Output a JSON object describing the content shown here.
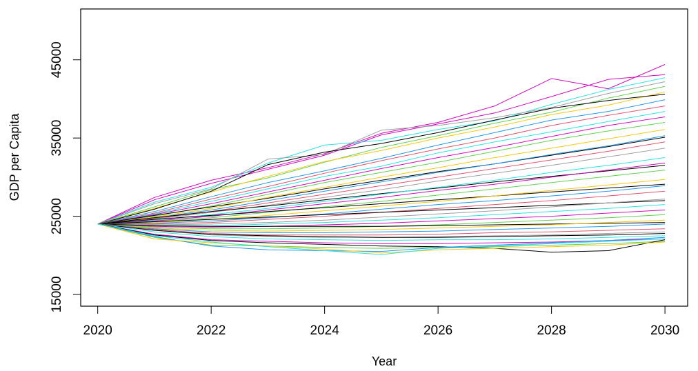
{
  "chart_data": {
    "type": "line",
    "title": "",
    "xlabel": "Year",
    "ylabel": "GDP per Capita",
    "xlim": [
      2019.7,
      2030.4
    ],
    "ylim": [
      13500,
      51500
    ],
    "x_ticks": [
      2020,
      2022,
      2024,
      2026,
      2028,
      2030
    ],
    "x_tick_labels": [
      "2020",
      "2022",
      "2024",
      "2026",
      "2028",
      "2030"
    ],
    "y_ticks": [
      15000,
      25000,
      35000,
      45000
    ],
    "y_tick_labels": [
      "15000",
      "25000",
      "35000",
      "45000"
    ],
    "grid": false,
    "legend": "none",
    "x": [
      2020,
      2021,
      2022,
      2023,
      2024,
      2025,
      2026,
      2027,
      2028,
      2029,
      2030
    ],
    "series": [
      {
        "color": "#cd0bbc",
        "values": [
          24000,
          27400,
          29600,
          31200,
          33000,
          35600,
          37000,
          39100,
          42600,
          41300,
          44400
        ]
      },
      {
        "color": "#cd0bbc",
        "values": [
          24000,
          27100,
          29200,
          31000,
          32800,
          35400,
          36800,
          38200,
          40300,
          42500,
          43100
        ]
      },
      {
        "color": "#28e2e5",
        "values": [
          24000,
          26800,
          28700,
          31800,
          34100,
          34700,
          36100,
          37200,
          39300,
          41200,
          42700
        ]
      },
      {
        "color": "#9e9e9e",
        "values": [
          24000,
          26600,
          28500,
          32300,
          32900,
          36000,
          36600,
          37600,
          38900,
          40700,
          42200
        ]
      },
      {
        "color": "#61d04f",
        "values": [
          24000,
          26200,
          28400,
          29900,
          31900,
          33800,
          35300,
          36900,
          38300,
          40100,
          41600
        ]
      },
      {
        "color": "#f5c710",
        "values": [
          24000,
          26000,
          28100,
          30100,
          32000,
          33400,
          35000,
          36400,
          38000,
          39200,
          40900
        ]
      },
      {
        "color": "#000000",
        "values": [
          24000,
          25900,
          28200,
          31600,
          33200,
          34300,
          35700,
          37300,
          38800,
          39800,
          40600
        ]
      },
      {
        "color": "#2297e6",
        "values": [
          24000,
          25600,
          27500,
          29300,
          30800,
          32400,
          34100,
          35700,
          37300,
          38400,
          39900
        ]
      },
      {
        "color": "#df536b",
        "values": [
          24000,
          25400,
          27200,
          28800,
          30500,
          32100,
          33600,
          35000,
          36600,
          37900,
          39100
        ]
      },
      {
        "color": "#28e2e5",
        "values": [
          24000,
          25300,
          26900,
          28500,
          30100,
          31400,
          33100,
          34500,
          35800,
          37100,
          38400
        ]
      },
      {
        "color": "#cd0bbc",
        "values": [
          24000,
          25200,
          26600,
          28100,
          29600,
          31100,
          32500,
          33800,
          35200,
          36600,
          37700
        ]
      },
      {
        "color": "#61d04f",
        "values": [
          24000,
          25000,
          26300,
          27800,
          29300,
          30600,
          31900,
          33300,
          34700,
          35900,
          37000
        ]
      },
      {
        "color": "#000000",
        "values": [
          24000,
          25100,
          26200,
          27300,
          28500,
          29600,
          30700,
          31700,
          32800,
          33900,
          35100
        ]
      },
      {
        "color": "#f5c710",
        "values": [
          24000,
          24900,
          26000,
          27400,
          28700,
          30000,
          31200,
          32500,
          33700,
          34900,
          36100
        ]
      },
      {
        "color": "#2297e6",
        "values": [
          24000,
          24800,
          25800,
          27000,
          28200,
          29400,
          30600,
          31700,
          32900,
          34000,
          35300
        ]
      },
      {
        "color": "#df536b",
        "values": [
          24000,
          24700,
          25600,
          26700,
          27800,
          28900,
          30000,
          31100,
          32200,
          33300,
          34500
        ]
      },
      {
        "color": "#9e9e9e",
        "values": [
          24000,
          24600,
          25500,
          26400,
          27400,
          28400,
          29500,
          30500,
          31500,
          32600,
          33700
        ]
      },
      {
        "color": "#000000",
        "values": [
          24000,
          24800,
          25600,
          26300,
          27100,
          27900,
          28600,
          29400,
          30100,
          30800,
          31500
        ]
      },
      {
        "color": "#28e2e5",
        "values": [
          24000,
          24500,
          25200,
          26000,
          26900,
          27800,
          28700,
          29600,
          30600,
          31500,
          32500
        ]
      },
      {
        "color": "#cd0bbc",
        "values": [
          24000,
          24400,
          25000,
          25800,
          26600,
          27400,
          28300,
          29100,
          30000,
          30900,
          31800
        ]
      },
      {
        "color": "#61d04f",
        "values": [
          24000,
          24300,
          24800,
          25500,
          26200,
          26900,
          27700,
          28500,
          29300,
          30100,
          30900
        ]
      },
      {
        "color": "#000000",
        "values": [
          24000,
          24600,
          25100,
          25600,
          26100,
          26600,
          27100,
          27600,
          28100,
          28600,
          29100
        ]
      },
      {
        "color": "#f5c710",
        "values": [
          24000,
          24200,
          24600,
          25100,
          25700,
          26300,
          26900,
          27600,
          28300,
          29000,
          29700
        ]
      },
      {
        "color": "#2297e6",
        "values": [
          24000,
          24100,
          24400,
          24800,
          25300,
          25900,
          26500,
          27000,
          27600,
          28200,
          28900
        ]
      },
      {
        "color": "#df536b",
        "values": [
          24000,
          24000,
          24200,
          24600,
          25000,
          25500,
          26000,
          26500,
          27000,
          27600,
          28200
        ]
      },
      {
        "color": "#000000",
        "values": [
          24000,
          24300,
          24600,
          24900,
          25200,
          25500,
          25800,
          26100,
          26400,
          26700,
          27000
        ]
      },
      {
        "color": "#9e9e9e",
        "values": [
          24000,
          23900,
          24000,
          24200,
          24500,
          24900,
          25300,
          25700,
          26200,
          26700,
          27200
        ]
      },
      {
        "color": "#28e2e5",
        "values": [
          24000,
          23800,
          23800,
          24000,
          24200,
          24500,
          24800,
          25200,
          25600,
          26000,
          26500
        ]
      },
      {
        "color": "#cd0bbc",
        "values": [
          24000,
          23700,
          23600,
          23700,
          23900,
          24100,
          24400,
          24700,
          25000,
          25400,
          25800
        ]
      },
      {
        "color": "#61d04f",
        "values": [
          24000,
          23600,
          23400,
          23400,
          23500,
          23700,
          23900,
          24200,
          24500,
          24800,
          25200
        ]
      },
      {
        "color": "#000000",
        "values": [
          24000,
          23800,
          23700,
          23700,
          23700,
          23700,
          23800,
          23900,
          24000,
          24100,
          24200
        ]
      },
      {
        "color": "#f5c710",
        "values": [
          24000,
          23500,
          23200,
          23100,
          23200,
          23300,
          23500,
          23700,
          23900,
          24200,
          24500
        ]
      },
      {
        "color": "#2297e6",
        "values": [
          24000,
          23400,
          23000,
          22900,
          22900,
          23000,
          23100,
          23300,
          23500,
          23700,
          24000
        ]
      },
      {
        "color": "#df536b",
        "values": [
          24000,
          23300,
          22800,
          22600,
          22600,
          22600,
          22700,
          22900,
          23000,
          23200,
          23400
        ]
      },
      {
        "color": "#9e9e9e",
        "values": [
          24000,
          23200,
          22600,
          22400,
          22300,
          22300,
          22400,
          22500,
          22600,
          22800,
          23000
        ]
      },
      {
        "color": "#000000",
        "values": [
          24000,
          23200,
          22700,
          22500,
          22400,
          22300,
          22300,
          22400,
          22500,
          22600,
          22800
        ]
      },
      {
        "color": "#28e2e5",
        "values": [
          24000,
          23000,
          22400,
          22100,
          22000,
          21900,
          22000,
          22000,
          22100,
          22300,
          22500
        ]
      },
      {
        "color": "#cd0bbc",
        "values": [
          24000,
          22700,
          22000,
          21800,
          21600,
          21500,
          21500,
          21600,
          21700,
          21900,
          22100
        ]
      },
      {
        "color": "#61d04f",
        "values": [
          24000,
          22300,
          21300,
          21200,
          21000,
          20900,
          21000,
          21100,
          21300,
          21500,
          21800
        ]
      },
      {
        "color": "#000000",
        "values": [
          24000,
          22600,
          21900,
          21600,
          21400,
          21200,
          21100,
          20900,
          20400,
          20600,
          22000
        ]
      },
      {
        "color": "#2297e6",
        "values": [
          24000,
          22400,
          21200,
          20700,
          20600,
          20500,
          21000,
          21300,
          21600,
          21900,
          22300
        ]
      },
      {
        "color": "#f5c710",
        "values": [
          24000,
          22100,
          21600,
          21200,
          20800,
          20300,
          20700,
          20900,
          21100,
          21300,
          21700
        ]
      },
      {
        "color": "#28e2e5",
        "values": [
          24000,
          22500,
          21700,
          21100,
          20600,
          20100,
          20900,
          21200,
          21500,
          21800,
          22100
        ]
      }
    ]
  }
}
